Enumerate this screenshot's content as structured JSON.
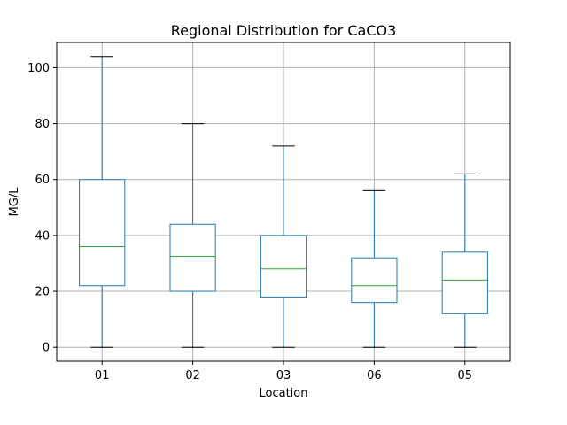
{
  "chart_data": {
    "type": "box",
    "title": "Regional Distribution for CaCO3",
    "xlabel": "Location",
    "ylabel": "MG/L",
    "ylim": [
      -5,
      109
    ],
    "yticks": [
      0,
      20,
      40,
      60,
      80,
      100
    ],
    "grid": true,
    "categories": [
      "01",
      "02",
      "03",
      "06",
      "05"
    ],
    "boxes": [
      {
        "label": "01",
        "whisker_low": 0,
        "q1": 22,
        "median": 36,
        "q3": 60,
        "whisker_high": 104
      },
      {
        "label": "02",
        "whisker_low": 0,
        "q1": 20,
        "median": 32.5,
        "q3": 44,
        "whisker_high": 80
      },
      {
        "label": "03",
        "whisker_low": 0,
        "q1": 18,
        "median": 28,
        "q3": 40,
        "whisker_high": 72
      },
      {
        "label": "06",
        "whisker_low": 0,
        "q1": 16,
        "median": 22,
        "q3": 32,
        "whisker_high": 56
      },
      {
        "label": "05",
        "whisker_low": 0,
        "q1": 12,
        "median": 24,
        "q3": 34,
        "whisker_high": 62
      }
    ],
    "colors": {
      "box": "#1f77b4",
      "median": "#2ca02c",
      "whisker_cap": "#000000",
      "grid": "#b0b0b0",
      "axes": "#000000"
    }
  }
}
